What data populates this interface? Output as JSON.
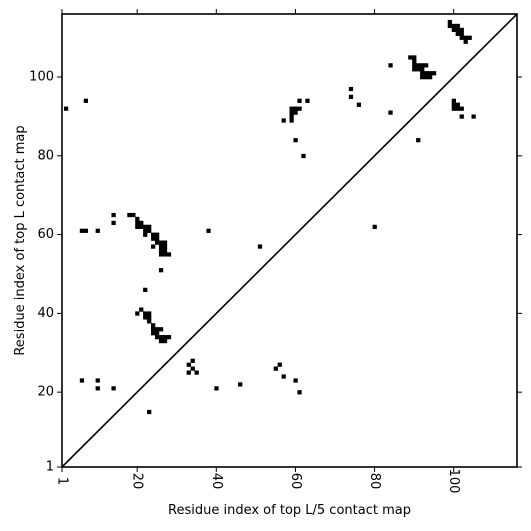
{
  "chart_data": {
    "type": "heatmap",
    "xlabel": "Residue index of top L/5 contact map",
    "ylabel": "Residue index of top L contact map",
    "xlim": [
      1,
      116
    ],
    "ylim": [
      1,
      116
    ],
    "xticks": [
      1,
      20,
      40,
      60,
      80,
      100
    ],
    "yticks": [
      1,
      20,
      40,
      60,
      80,
      100
    ],
    "diagonal_line": true,
    "grid": false,
    "cell_color": "#000000",
    "lower_triangle_contacts": [
      [
        22,
        46
      ],
      [
        22,
        40
      ],
      [
        23,
        40
      ],
      [
        21,
        41
      ],
      [
        22,
        39
      ],
      [
        23,
        39
      ],
      [
        23,
        38
      ],
      [
        24,
        37
      ],
      [
        24,
        36
      ],
      [
        25,
        36
      ],
      [
        26,
        36
      ],
      [
        24,
        35
      ],
      [
        25,
        35
      ],
      [
        25,
        34
      ],
      [
        26,
        34
      ],
      [
        27,
        34
      ],
      [
        28,
        34
      ],
      [
        26,
        33
      ],
      [
        27,
        33
      ],
      [
        20,
        40
      ],
      [
        23,
        15
      ],
      [
        33,
        27
      ],
      [
        33,
        25
      ],
      [
        34,
        28
      ],
      [
        34,
        26
      ],
      [
        35,
        25
      ],
      [
        40,
        21
      ],
      [
        46,
        22
      ],
      [
        55,
        26
      ],
      [
        56,
        27
      ],
      [
        57,
        24
      ],
      [
        60,
        23
      ],
      [
        61,
        20
      ],
      [
        80,
        62
      ],
      [
        84,
        91
      ],
      [
        91,
        84
      ],
      [
        84,
        103
      ],
      [
        6,
        23
      ],
      [
        10,
        23
      ],
      [
        10,
        21
      ],
      [
        14,
        21
      ]
    ],
    "upper_triangle_contacts": [
      [
        2,
        92
      ],
      [
        7,
        94
      ],
      [
        6,
        61
      ],
      [
        7,
        61
      ],
      [
        10,
        61
      ],
      [
        14,
        65
      ],
      [
        14,
        63
      ],
      [
        18,
        65
      ],
      [
        19,
        65
      ],
      [
        20,
        64
      ],
      [
        20,
        63
      ],
      [
        21,
        63
      ],
      [
        20,
        62
      ],
      [
        21,
        62
      ],
      [
        22,
        62
      ],
      [
        23,
        62
      ],
      [
        22,
        61
      ],
      [
        23,
        61
      ],
      [
        22,
        60
      ],
      [
        24,
        60
      ],
      [
        25,
        60
      ],
      [
        24,
        59
      ],
      [
        25,
        59
      ],
      [
        25,
        58
      ],
      [
        26,
        58
      ],
      [
        27,
        58
      ],
      [
        26,
        57
      ],
      [
        27,
        57
      ],
      [
        24,
        57
      ],
      [
        26,
        56
      ],
      [
        27,
        56
      ],
      [
        26,
        55
      ],
      [
        27,
        55
      ],
      [
        28,
        55
      ],
      [
        26,
        51
      ],
      [
        38,
        61
      ],
      [
        51,
        57
      ],
      [
        57,
        89
      ],
      [
        59,
        89
      ],
      [
        59,
        90
      ],
      [
        59,
        91
      ],
      [
        60,
        91
      ],
      [
        59,
        92
      ],
      [
        60,
        92
      ],
      [
        61,
        92
      ],
      [
        61,
        94
      ],
      [
        63,
        94
      ],
      [
        60,
        84
      ],
      [
        62,
        80
      ],
      [
        74,
        97
      ],
      [
        74,
        95
      ],
      [
        76,
        93
      ],
      [
        89,
        105
      ],
      [
        90,
        105
      ],
      [
        90,
        104
      ],
      [
        90,
        103
      ],
      [
        91,
        103
      ],
      [
        92,
        103
      ],
      [
        93,
        103
      ],
      [
        90,
        102
      ],
      [
        91,
        102
      ],
      [
        92,
        102
      ],
      [
        92,
        101
      ],
      [
        93,
        101
      ],
      [
        94,
        101
      ],
      [
        95,
        101
      ],
      [
        92,
        100
      ],
      [
        93,
        100
      ],
      [
        94,
        100
      ],
      [
        99,
        114
      ],
      [
        99,
        113
      ],
      [
        100,
        113
      ],
      [
        101,
        113
      ],
      [
        100,
        112
      ],
      [
        101,
        112
      ],
      [
        102,
        112
      ],
      [
        101,
        111
      ],
      [
        102,
        111
      ],
      [
        102,
        110
      ],
      [
        103,
        110
      ],
      [
        104,
        110
      ],
      [
        103,
        109
      ],
      [
        100,
        94
      ],
      [
        100,
        93
      ],
      [
        101,
        93
      ],
      [
        100,
        92
      ],
      [
        101,
        92
      ],
      [
        102,
        92
      ],
      [
        102,
        90
      ],
      [
        105,
        90
      ]
    ]
  }
}
